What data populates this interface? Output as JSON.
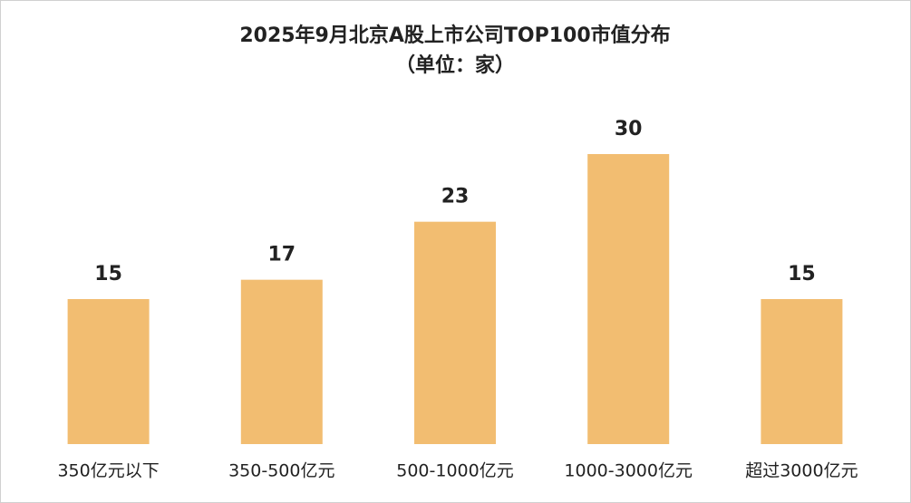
{
  "chart_data": {
    "type": "bar",
    "title": "2025年9月北京A股上市公司TOP100市值分布",
    "subtitle": "（单位：家）",
    "categories": [
      "350亿元以下",
      "350-500亿元",
      "500-1000亿元",
      "1000-3000亿元",
      "超过3000亿元"
    ],
    "values": [
      15,
      17,
      23,
      30,
      15
    ],
    "color": "#f2bd71"
  }
}
